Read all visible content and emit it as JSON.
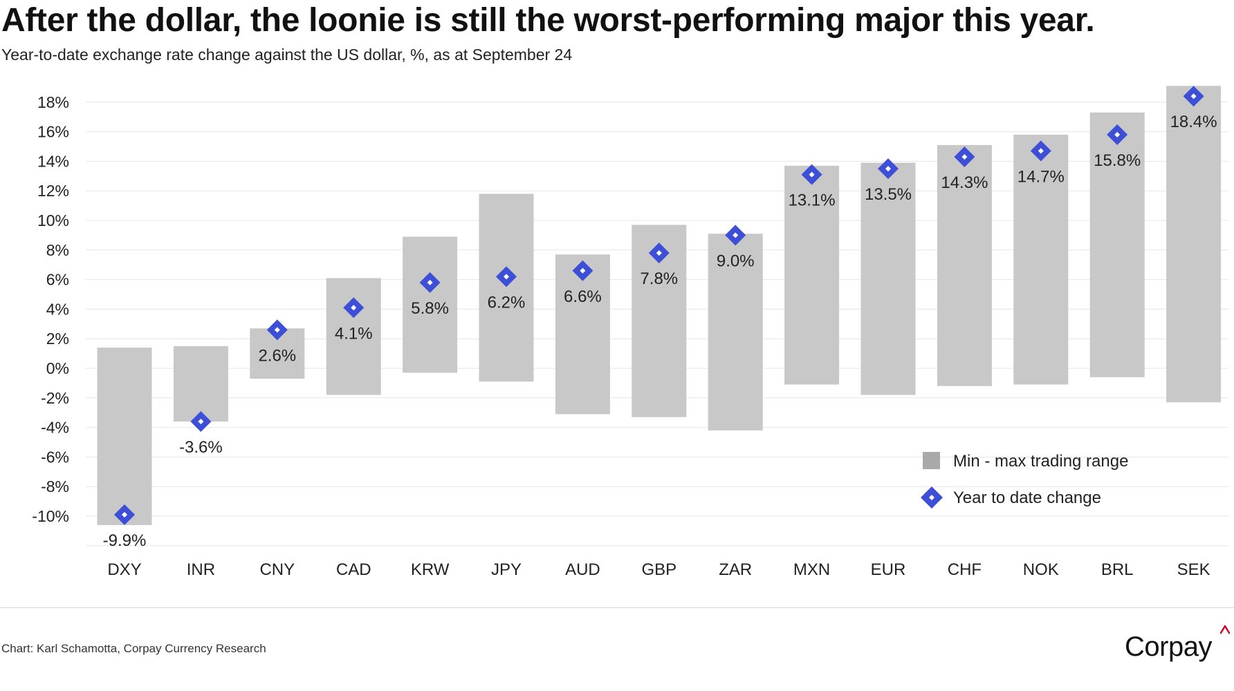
{
  "header": {
    "title": "After the dollar, the loonie is still the worst-performing major this year.",
    "subtitle": "Year-to-date exchange rate change against the US dollar, %, as at September 24"
  },
  "footer": {
    "source": "Chart: Karl Schamotta, Corpay Currency Research",
    "logo_text": "Corpay"
  },
  "colors": {
    "range_bar": "#c8c8c8",
    "legend_swatch": "#a9a9a9",
    "marker": "#3d4fd6",
    "marker_center": "#ffffff",
    "logo_accent": "#c8102e"
  },
  "chart_data": {
    "type": "bar",
    "title": "After the dollar, the loonie is still the worst-performing major this year.",
    "subtitle": "Year-to-date exchange rate change against the US dollar, %, as at September 24",
    "categories": [
      "DXY",
      "INR",
      "CNY",
      "CAD",
      "KRW",
      "JPY",
      "AUD",
      "GBP",
      "ZAR",
      "MXN",
      "EUR",
      "CHF",
      "NOK",
      "BRL",
      "SEK"
    ],
    "series": [
      {
        "name": "Min - max trading range",
        "type": "range-bar",
        "min": [
          -10.6,
          -3.6,
          -0.7,
          -1.8,
          -0.3,
          -0.9,
          -3.1,
          -3.3,
          -4.2,
          -1.1,
          -1.8,
          -1.2,
          -1.1,
          -0.6,
          -2.3
        ],
        "max": [
          1.4,
          1.5,
          2.7,
          6.1,
          8.9,
          11.8,
          7.7,
          9.7,
          9.1,
          13.7,
          13.9,
          15.1,
          15.8,
          17.3,
          19.1
        ]
      },
      {
        "name": "Year to date change",
        "type": "marker",
        "values": [
          -9.9,
          -3.6,
          2.6,
          4.1,
          5.8,
          6.2,
          6.6,
          7.8,
          9.0,
          13.1,
          13.5,
          14.3,
          14.7,
          15.8,
          18.4
        ],
        "labels": [
          "-9.9%",
          "-3.6%",
          "2.6%",
          "4.1%",
          "5.8%",
          "6.2%",
          "6.6%",
          "7.8%",
          "9.0%",
          "13.1%",
          "13.5%",
          "14.3%",
          "14.7%",
          "15.8%",
          "18.4%"
        ]
      }
    ],
    "ylim": [
      -12,
      20
    ],
    "yticks": [
      18,
      16,
      14,
      12,
      10,
      8,
      6,
      4,
      2,
      0,
      -2,
      -4,
      -6,
      -8,
      -10
    ],
    "ytick_labels": [
      "18%",
      "16%",
      "14%",
      "12%",
      "10%",
      "8%",
      "6%",
      "4%",
      "2%",
      "0%",
      "-2%",
      "-4%",
      "-6%",
      "-8%",
      "-10%"
    ],
    "grid": true,
    "legend": "bottom-right",
    "legend_entries": [
      "Min - max trading range",
      "Year to date change"
    ],
    "xlabel": "",
    "ylabel": ""
  }
}
